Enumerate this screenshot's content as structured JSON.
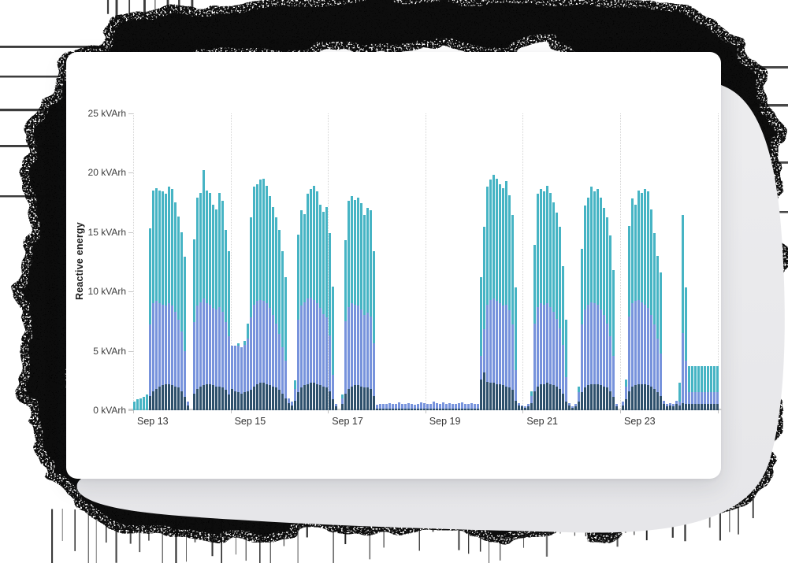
{
  "decoration": {
    "scribble_color": "#0b0b0b",
    "blob_color": "#eaeaec"
  },
  "chart_data": {
    "type": "bar",
    "stacked": true,
    "ylabel": "Reactive energy",
    "unit": "kVArh",
    "ylim": [
      0,
      25
    ],
    "grid": "vertical-dotted-every-2-days",
    "legend": "none",
    "y_ticks": [
      0,
      5,
      10,
      15,
      20,
      25
    ],
    "y_tick_labels": [
      "0 kVArh",
      "5 kVArh",
      "10 kVArh",
      "15 kVArh",
      "20 kVArh",
      "25 kVArh"
    ],
    "x_tick_labels": [
      "Sep 13",
      "Sep 15",
      "Sep 17",
      "Sep 19",
      "Sep 21",
      "Sep 23"
    ],
    "series_names": [
      "dark-slate-bottom",
      "periwinkle-middle",
      "teal-top"
    ],
    "series_colors": [
      "#2e506c",
      "#7793dc",
      "#46b4c4"
    ],
    "bars_note": "each bar = [bottom,middle,top] segment sizes in kVArh, ~90min intervals Sep 12 evening - Sep 24",
    "bars": [
      [
        0,
        0,
        0.7
      ],
      [
        0,
        0,
        0.9
      ],
      [
        0,
        0,
        1.0
      ],
      [
        0,
        0,
        1.1
      ],
      [
        0,
        0,
        1.3
      ],
      [
        1.2,
        6.0,
        8.1
      ],
      [
        1.6,
        7.4,
        9.5
      ],
      [
        1.8,
        7.4,
        9.5
      ],
      [
        2.0,
        7.0,
        9.5
      ],
      [
        2.1,
        6.8,
        9.5
      ],
      [
        2.2,
        6.6,
        9.4
      ],
      [
        2.2,
        6.8,
        9.8
      ],
      [
        2.1,
        6.7,
        9.8
      ],
      [
        2.0,
        6.3,
        9.2
      ],
      [
        1.9,
        5.7,
        8.7
      ],
      [
        1.6,
        5.0,
        8.4
      ],
      [
        1.1,
        3.9,
        7.9
      ],
      [
        0.4,
        0.3,
        0
      ],
      [
        0,
        0,
        0
      ],
      [
        1.4,
        6.0,
        7.0
      ],
      [
        1.8,
        7.0,
        9.1
      ],
      [
        2.0,
        7.1,
        9.2
      ],
      [
        2.1,
        7.3,
        10.8
      ],
      [
        2.2,
        6.8,
        9.5
      ],
      [
        2.2,
        6.7,
        9.4
      ],
      [
        2.1,
        6.5,
        8.7
      ],
      [
        2.0,
        6.5,
        8.4
      ],
      [
        2.0,
        6.7,
        9.6
      ],
      [
        1.9,
        6.4,
        9.3
      ],
      [
        1.7,
        5.7,
        7.8
      ],
      [
        1.3,
        4.9,
        7.2
      ],
      [
        1.8,
        3.6,
        0
      ],
      [
        1.6,
        3.8,
        0
      ],
      [
        1.5,
        3.9,
        0.2
      ],
      [
        1.4,
        3.9,
        0
      ],
      [
        1.5,
        4.0,
        0.3
      ],
      [
        1.6,
        4.4,
        1.3
      ],
      [
        1.7,
        6.1,
        8.4
      ],
      [
        2.0,
        6.9,
        9.9
      ],
      [
        2.2,
        7.0,
        9.8
      ],
      [
        2.3,
        7.0,
        10.1
      ],
      [
        2.3,
        6.9,
        10.3
      ],
      [
        2.2,
        6.8,
        9.9
      ],
      [
        2.1,
        6.5,
        9.4
      ],
      [
        2.0,
        6.0,
        9.1
      ],
      [
        1.9,
        5.4,
        8.9
      ],
      [
        1.7,
        4.7,
        8.8
      ],
      [
        1.4,
        3.9,
        8.1
      ],
      [
        1.0,
        3.2,
        7.0
      ],
      [
        0.6,
        0.4,
        0
      ],
      [
        0.4,
        0.3,
        0
      ],
      [
        0.8,
        1.0,
        0.7
      ],
      [
        1.5,
        6.1,
        7.2
      ],
      [
        1.9,
        6.9,
        8.0
      ],
      [
        2.1,
        7.0,
        7.4
      ],
      [
        2.2,
        7.2,
        8.8
      ],
      [
        2.3,
        7.2,
        9.1
      ],
      [
        2.3,
        7.0,
        9.6
      ],
      [
        2.2,
        6.8,
        9.4
      ],
      [
        2.1,
        6.5,
        8.7
      ],
      [
        2.0,
        6.1,
        8.6
      ],
      [
        1.9,
        5.9,
        9.3
      ],
      [
        1.6,
        4.7,
        8.6
      ],
      [
        0.9,
        2.1,
        7.4
      ],
      [
        0.3,
        0.2,
        0
      ],
      [
        0,
        0,
        0
      ],
      [
        0.5,
        0.5,
        0.3
      ],
      [
        1.4,
        6.1,
        6.8
      ],
      [
        1.8,
        6.9,
        8.9
      ],
      [
        2.0,
        7.0,
        9.0
      ],
      [
        2.1,
        6.8,
        8.8
      ],
      [
        2.1,
        6.7,
        9.1
      ],
      [
        2.0,
        6.5,
        8.9
      ],
      [
        1.9,
        6.1,
        8.4
      ],
      [
        1.9,
        6.3,
        8.8
      ],
      [
        1.8,
        6.1,
        8.9
      ],
      [
        1.2,
        4.4,
        7.8
      ],
      [
        0.15,
        0.3,
        0
      ],
      [
        0.15,
        0.35,
        0
      ],
      [
        0.15,
        0.4,
        0
      ],
      [
        0.15,
        0.35,
        0
      ],
      [
        0.15,
        0.45,
        0
      ],
      [
        0.15,
        0.4,
        0
      ],
      [
        0.15,
        0.35,
        0
      ],
      [
        0.15,
        0.5,
        0
      ],
      [
        0.15,
        0.35,
        0
      ],
      [
        0.15,
        0.4,
        0
      ],
      [
        0.15,
        0.45,
        0
      ],
      [
        0.15,
        0.35,
        0
      ],
      [
        0.15,
        0.3,
        0
      ],
      [
        0.15,
        0.4,
        0
      ],
      [
        0.15,
        0.5,
        0
      ],
      [
        0.15,
        0.45,
        0
      ],
      [
        0.15,
        0.35,
        0
      ],
      [
        0.15,
        0.4,
        0
      ],
      [
        0.15,
        0.55,
        0
      ],
      [
        0.15,
        0.45,
        0
      ],
      [
        0.15,
        0.4,
        0
      ],
      [
        0.15,
        0.5,
        0
      ],
      [
        0.15,
        0.35,
        0
      ],
      [
        0.15,
        0.45,
        0
      ],
      [
        0.15,
        0.4,
        0
      ],
      [
        0.15,
        0.35,
        0
      ],
      [
        0.15,
        0.45,
        0
      ],
      [
        0.15,
        0.5,
        0
      ],
      [
        0.15,
        0.4,
        0
      ],
      [
        0.15,
        0.35,
        0
      ],
      [
        0.15,
        0.45,
        0
      ],
      [
        0.15,
        0.4,
        0
      ],
      [
        0.15,
        0.35,
        0
      ],
      [
        2.6,
        2.0,
        6.6
      ],
      [
        3.2,
        3.6,
        8.6
      ],
      [
        2.4,
        6.5,
        9.9
      ],
      [
        2.3,
        7.0,
        10.1
      ],
      [
        2.3,
        7.1,
        10.4
      ],
      [
        2.2,
        7.0,
        10.3
      ],
      [
        2.2,
        6.8,
        10.0
      ],
      [
        2.1,
        6.7,
        9.9
      ],
      [
        2.0,
        6.9,
        10.4
      ],
      [
        1.9,
        6.5,
        9.7
      ],
      [
        1.7,
        5.5,
        9.2
      ],
      [
        0.8,
        2.6,
        6.9
      ],
      [
        0.4,
        0.2,
        0
      ],
      [
        0.3,
        0.1,
        0
      ],
      [
        0.2,
        0.1,
        0
      ],
      [
        0.3,
        0.2,
        0
      ],
      [
        0.6,
        0.6,
        0.4
      ],
      [
        1.6,
        5.7,
        6.6
      ],
      [
        2.0,
        6.7,
        9.5
      ],
      [
        2.2,
        6.8,
        9.6
      ],
      [
        2.2,
        6.7,
        9.5
      ],
      [
        2.3,
        6.7,
        9.9
      ],
      [
        2.2,
        6.5,
        9.6
      ],
      [
        2.1,
        6.2,
        9.2
      ],
      [
        2.0,
        5.7,
        8.9
      ],
      [
        1.8,
        5.1,
        8.5
      ],
      [
        1.4,
        4.1,
        6.6
      ],
      [
        0.7,
        2.1,
        4.8
      ],
      [
        0.4,
        0.2,
        0
      ],
      [
        0.2,
        0.1,
        0
      ],
      [
        0.3,
        0.2,
        0
      ],
      [
        0.7,
        0.8,
        0.5
      ],
      [
        1.5,
        5.7,
        6.4
      ],
      [
        1.9,
        6.6,
        8.7
      ],
      [
        2.1,
        6.8,
        9.0
      ],
      [
        2.2,
        6.9,
        9.7
      ],
      [
        2.2,
        6.8,
        9.4
      ],
      [
        2.2,
        6.7,
        9.7
      ],
      [
        2.1,
        6.4,
        9.4
      ],
      [
        2.0,
        6.0,
        9.0
      ],
      [
        1.9,
        5.4,
        8.9
      ],
      [
        1.6,
        4.6,
        8.5
      ],
      [
        1.1,
        3.5,
        7.2
      ],
      [
        0.3,
        0.2,
        0
      ],
      [
        0,
        0,
        0
      ],
      [
        0.4,
        0.3,
        0
      ],
      [
        0.9,
        1.1,
        0.6
      ],
      [
        1.6,
        6.3,
        7.6
      ],
      [
        2.0,
        7.0,
        8.8
      ],
      [
        2.1,
        7.1,
        8.1
      ],
      [
        2.2,
        7.1,
        9.2
      ],
      [
        2.2,
        6.9,
        9.2
      ],
      [
        2.2,
        6.7,
        9.7
      ],
      [
        2.1,
        6.5,
        9.8
      ],
      [
        2.0,
        6.0,
        8.9
      ],
      [
        1.8,
        5.4,
        7.7
      ],
      [
        1.5,
        4.5,
        7.0
      ],
      [
        1.2,
        3.6,
        6.8
      ],
      [
        0.5,
        0.3,
        0
      ],
      [
        0.3,
        0.2,
        0
      ],
      [
        0.4,
        0.2,
        0
      ],
      [
        0.3,
        0.2,
        0
      ],
      [
        0.5,
        0.3,
        0
      ],
      [
        0.4,
        0.3,
        1.6
      ],
      [
        0.6,
        5.9,
        9.9
      ],
      [
        0.5,
        3.7,
        6.1
      ],
      [
        0.5,
        1.0,
        2.2
      ],
      [
        0.5,
        1.0,
        2.2
      ],
      [
        0.5,
        1.0,
        2.2
      ],
      [
        0.5,
        1.0,
        2.2
      ],
      [
        0.5,
        1.0,
        2.2
      ],
      [
        0.5,
        1.0,
        2.2
      ],
      [
        0.5,
        1.0,
        2.2
      ],
      [
        0.5,
        1.0,
        2.2
      ],
      [
        0.5,
        1.0,
        2.2
      ],
      [
        0.5,
        1.0,
        2.2
      ]
    ]
  }
}
